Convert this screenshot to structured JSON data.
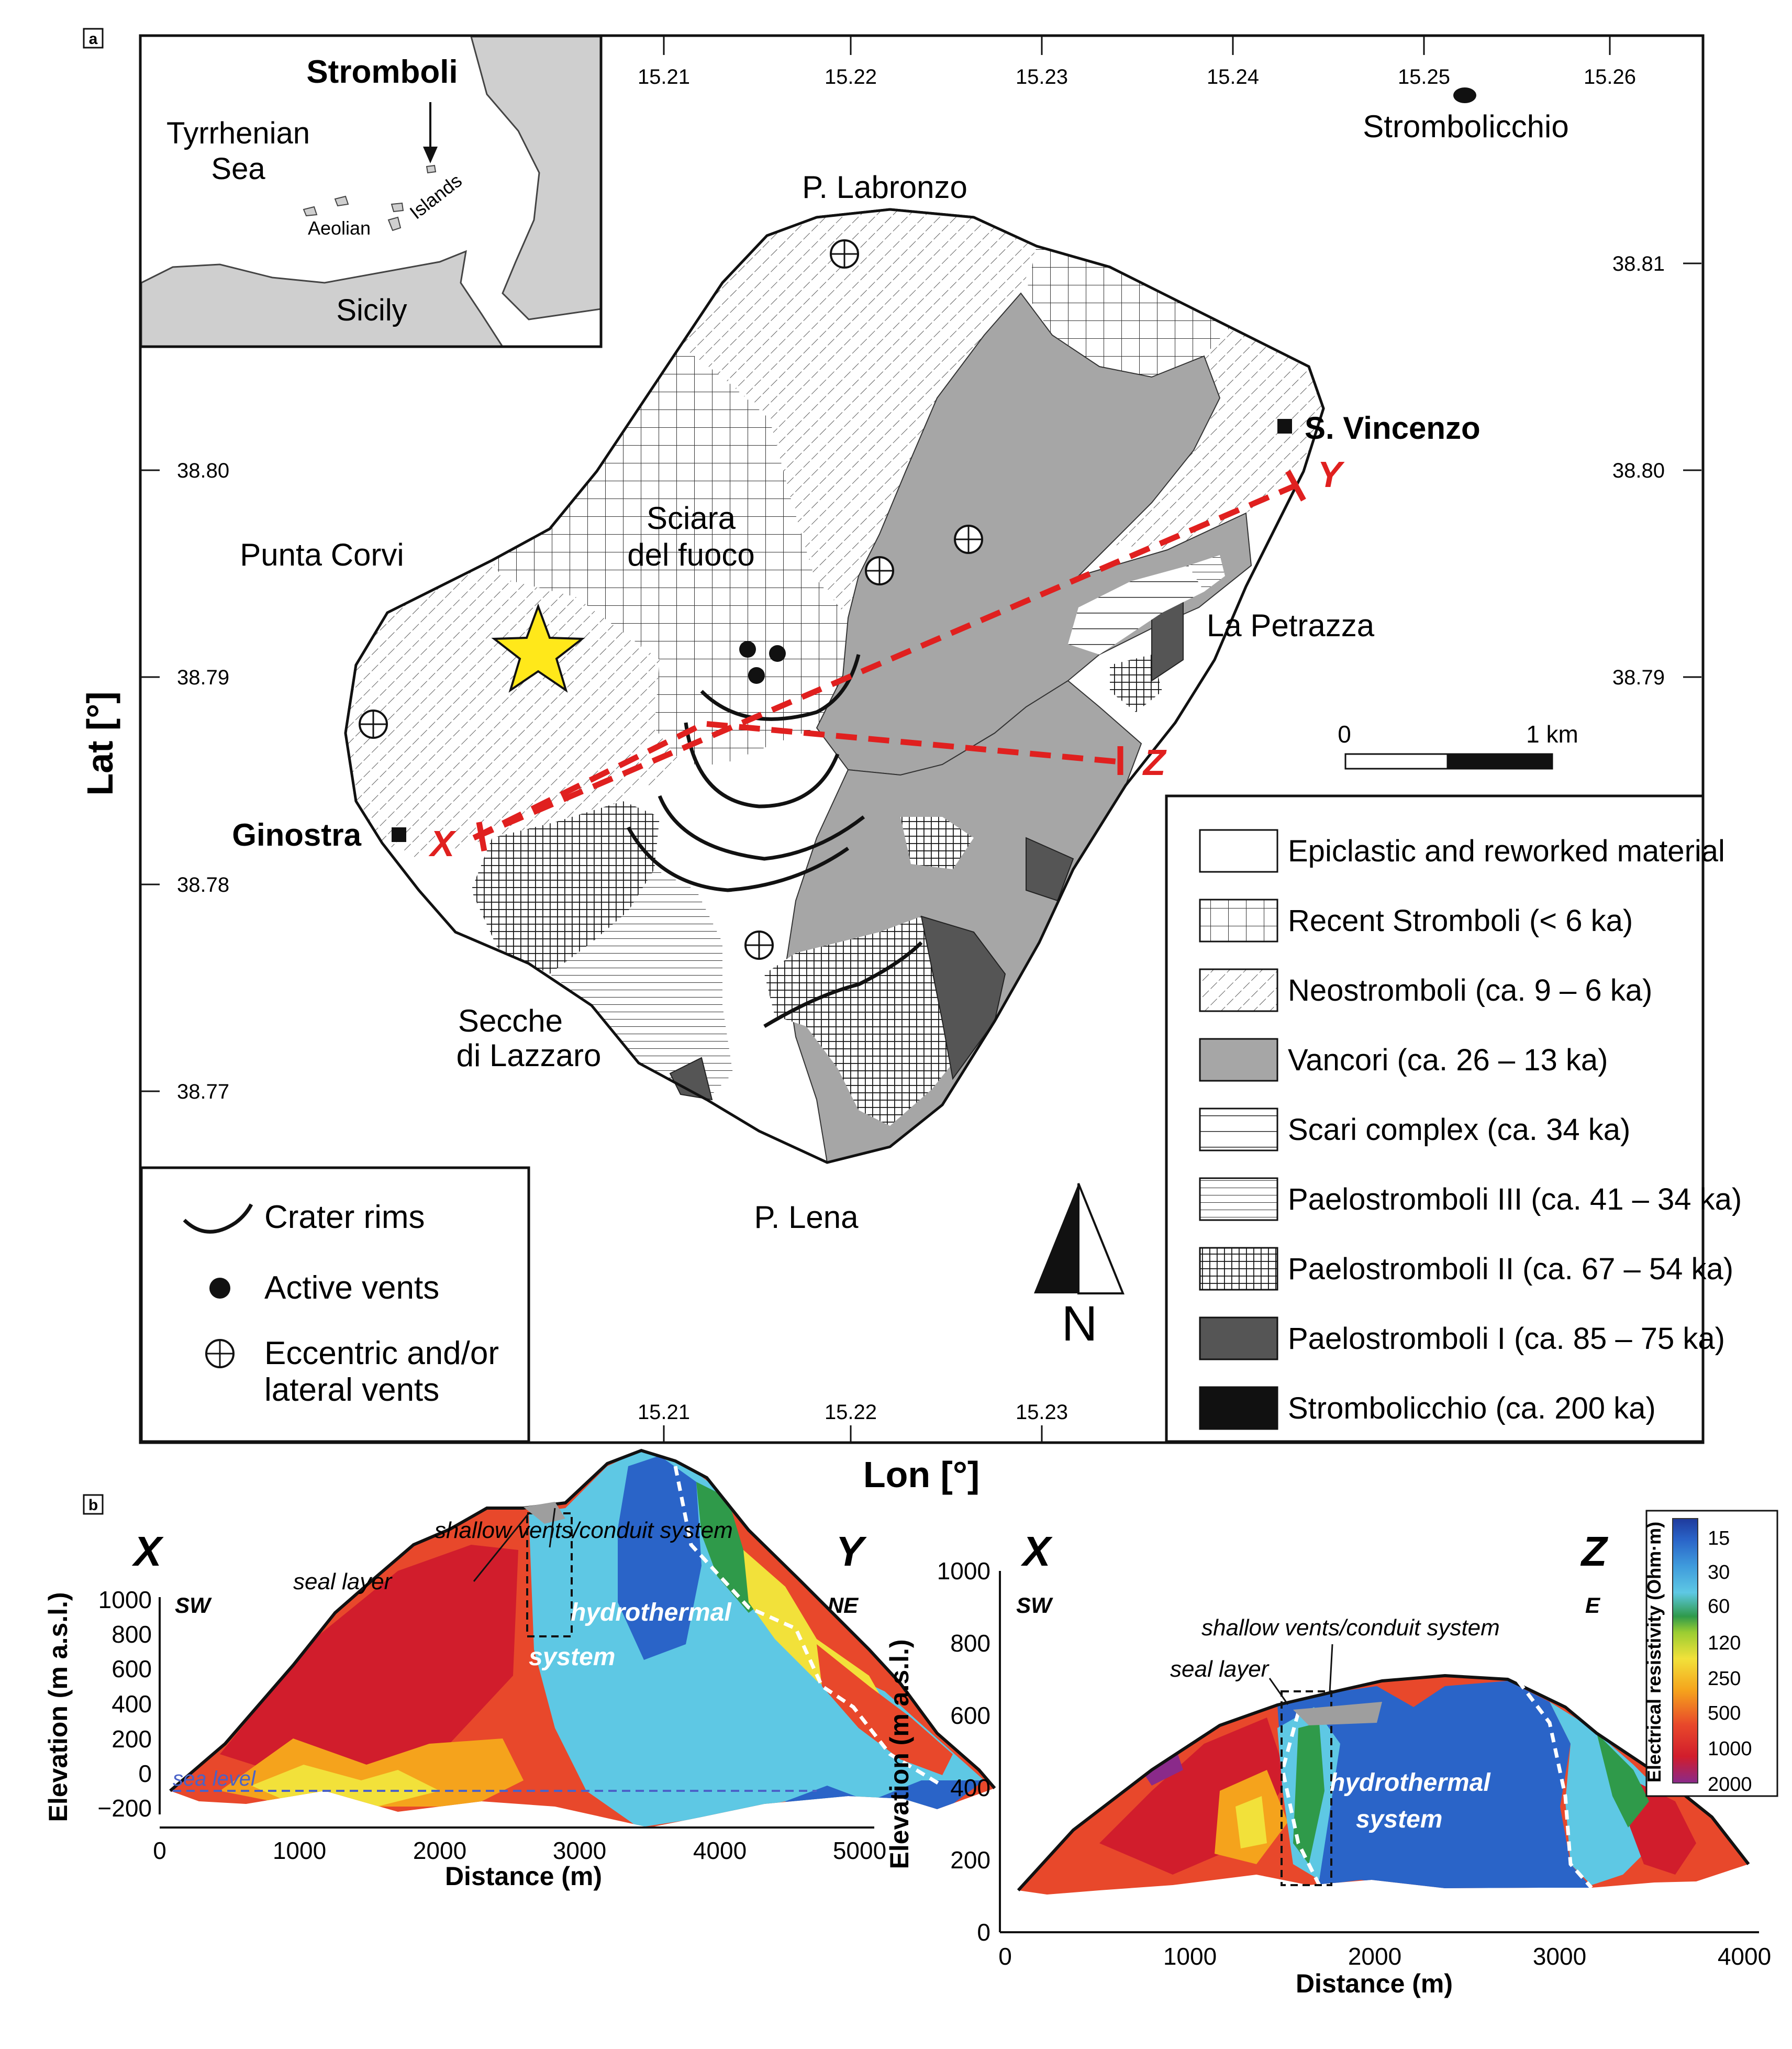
{
  "panel_a": {
    "label": "a",
    "inset": {
      "title": "Stromboli",
      "sea": [
        "Tyrrhenian",
        "Sea"
      ],
      "aeolian": "Aeolian",
      "islands": "Islands",
      "sicily": "Sicily"
    },
    "lon_ticks_top": [
      "15.21",
      "15.22",
      "15.23",
      "15.24",
      "15.25",
      "15.26"
    ],
    "lon_ticks_bottom": [
      "15.21",
      "15.22",
      "15.23"
    ],
    "lat_ticks_left": [
      "38.80",
      "38.79",
      "38.78",
      "38.77"
    ],
    "lat_ticks_right": [
      "38.81",
      "38.80",
      "38.79"
    ],
    "xlabel": "Lon [°]",
    "ylabel": "Lat [°]",
    "places": {
      "strombolicchio": "Strombolicchio",
      "labronzo": "P. Labronzo",
      "vincenzo": "S. Vincenzo",
      "sciara_1": "Sciara",
      "sciara_2": "del fuoco",
      "punta_corvi": "Punta Corvi",
      "petrazza": "La Petrazza",
      "ginostra": "Ginostra",
      "secche_1": "Secche",
      "secche_2": "di Lazzaro",
      "lena": "P. Lena"
    },
    "profile_labels": {
      "x": "X",
      "y": "Y",
      "z": "Z"
    },
    "scale_bar": {
      "start": "0",
      "end": "1 km"
    },
    "north": "N",
    "symbol_legend": [
      {
        "label": "Crater rims",
        "icon": "crater-rim-icon"
      },
      {
        "label": "Active vents",
        "icon": "active-vent-icon"
      },
      {
        "label": [
          "Eccentric and/or",
          "lateral vents"
        ],
        "icon": "eccentric-vent-icon"
      }
    ],
    "unit_legend": [
      {
        "label": "Epiclastic and reworked material",
        "fill": "#ffffff",
        "pattern": "none"
      },
      {
        "label": "Recent Stromboli (< 6 ka)",
        "fill": "#ffffff",
        "pattern": "grid"
      },
      {
        "label": "Neostromboli (ca. 9 – 6 ka)",
        "fill": "#ffffff",
        "pattern": "diagonal"
      },
      {
        "label": "Vancori (ca. 26 – 13 ka)",
        "fill": "#a6a6a6",
        "pattern": "none"
      },
      {
        "label": "Scari complex (ca. 34 ka)",
        "fill": "#ffffff",
        "pattern": "wide-horizontal"
      },
      {
        "label": "Paelostromboli III (ca. 41 – 34 ka)",
        "fill": "#ffffff",
        "pattern": "horizontal"
      },
      {
        "label": "Paelostromboli II (ca. 67 – 54 ka)",
        "fill": "#ffffff",
        "pattern": "dense-grid"
      },
      {
        "label": "Paelostromboli I (ca. 85 – 75 ka)",
        "fill": "#555555",
        "pattern": "none"
      },
      {
        "label": "Strombolicchio (ca. 200 ka)",
        "fill": "#111111",
        "pattern": "none"
      }
    ],
    "colors": {
      "profile_line": "#e0201f",
      "star": "#ffe81a"
    }
  },
  "panel_b": {
    "label": "b",
    "left": {
      "end_left": "X",
      "end_right": "Y",
      "dir_left": "SW",
      "dir_right": "NE",
      "seal": "seal layer",
      "vents": "shallow vents/conduit system",
      "hydro_1": "hydrothermal",
      "hydro_2": "system",
      "sea_level": "sea level",
      "yticks": [
        "1000",
        "800",
        "600",
        "400",
        "200",
        "0",
        "−200"
      ],
      "xticks": [
        "0",
        "1000",
        "2000",
        "3000",
        "4000",
        "5000"
      ],
      "ylabel": "Elevation (m a.s.l.)",
      "xlabel": "Distance (m)"
    },
    "right": {
      "end_left": "X",
      "end_right": "Z",
      "dir_left": "SW",
      "dir_right": "E",
      "seal": "seal layer",
      "vents": "shallow vents/conduit system",
      "hydro_1": "hydrothermal",
      "hydro_2": "system",
      "yticks": [
        "1000",
        "800",
        "600",
        "400",
        "200",
        "0"
      ],
      "xticks": [
        "0",
        "1000",
        "2000",
        "3000",
        "4000"
      ],
      "ylabel": "Elevation (m a.s.l.)",
      "xlabel": "Distance (m)"
    },
    "resistivity_scale": {
      "title": "Electrical resistivity (Ohm·m)",
      "values": [
        "15",
        "30",
        "60",
        "120",
        "250",
        "500",
        "1000",
        "2000"
      ],
      "colors": [
        "#1f3a9c",
        "#2a64c8",
        "#3f9bdc",
        "#5ec8e4",
        "#2f9a4a",
        "#9acd32",
        "#f2e13a",
        "#f5a31c",
        "#e8482b",
        "#d11d2c",
        "#8a2a8a"
      ]
    }
  }
}
